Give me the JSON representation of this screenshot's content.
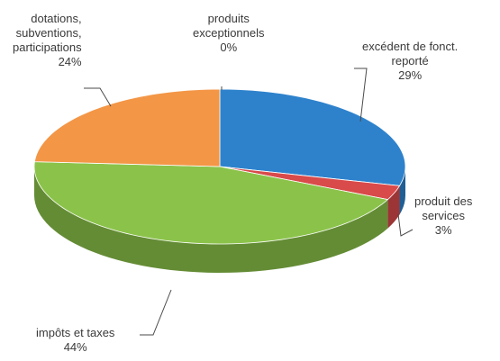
{
  "chart_data": {
    "type": "pie",
    "style": "3d",
    "legend": "none",
    "slices": [
      {
        "name": "excédent de fonct.\nreporté",
        "value": 29,
        "label_value": "29%",
        "color": "#2e82cc"
      },
      {
        "name": "produit des\nservices",
        "value": 3,
        "label_value": "3%",
        "color": "#d94a4a"
      },
      {
        "name": "impôts et taxes",
        "value": 44,
        "label_value": "44%",
        "color": "#8bc34a"
      },
      {
        "name": "dotations,\nsubventions,\nparticipations",
        "value": 24,
        "label_value": "24%",
        "color": "#f39646"
      },
      {
        "name": "produits\nexceptionnels",
        "value": 0,
        "label_value": "0%",
        "color": "#9e9e9e"
      }
    ]
  }
}
